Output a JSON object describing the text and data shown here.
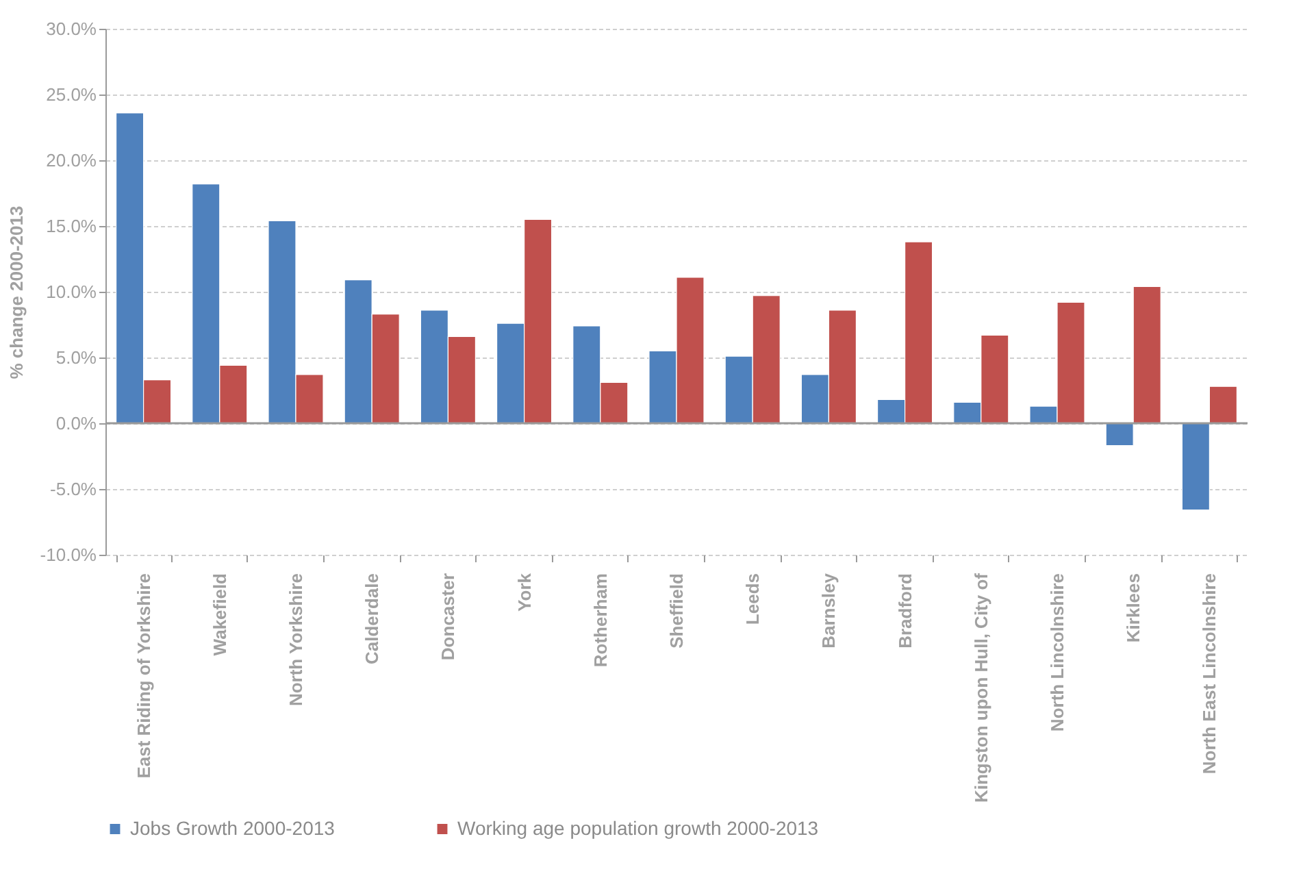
{
  "chart_data": {
    "type": "bar",
    "ylabel": "% change 2000-2013",
    "categories": [
      "East Riding of Yorkshire",
      "Wakefield",
      "North Yorkshire",
      "Calderdale",
      "Doncaster",
      "York",
      "Rotherham",
      "Sheffield",
      "Leeds",
      "Barnsley",
      "Bradford",
      "Kingston upon Hull, City of",
      "North Lincolnshire",
      "Kirklees",
      "North East Lincolnshire"
    ],
    "series": [
      {
        "name": "Jobs Growth 2000-2013",
        "color": "#4f81bd",
        "values": [
          23.6,
          18.2,
          15.4,
          10.9,
          8.6,
          7.6,
          7.4,
          5.5,
          5.1,
          3.7,
          1.8,
          1.6,
          1.3,
          -1.7,
          -6.6
        ]
      },
      {
        "name": "Working age population growth 2000-2013",
        "color": "#c0504d",
        "values": [
          3.3,
          4.4,
          3.7,
          8.3,
          6.6,
          15.5,
          3.1,
          11.1,
          9.7,
          8.6,
          13.8,
          6.7,
          9.2,
          10.4,
          2.8
        ]
      }
    ],
    "ylim": [
      -10,
      30
    ],
    "yticks": [
      {
        "value": -10,
        "label": "-10.0%"
      },
      {
        "value": -5,
        "label": "-5.0%"
      },
      {
        "value": 0,
        "label": "0.0%"
      },
      {
        "value": 5,
        "label": "5.0%"
      },
      {
        "value": 10,
        "label": "10.0%"
      },
      {
        "value": 15,
        "label": "15.0%"
      },
      {
        "value": 20,
        "label": "20.0%"
      },
      {
        "value": 25,
        "label": "25.0%"
      },
      {
        "value": 30,
        "label": "30.0%"
      }
    ],
    "grid": "y",
    "legend": "bottom"
  }
}
